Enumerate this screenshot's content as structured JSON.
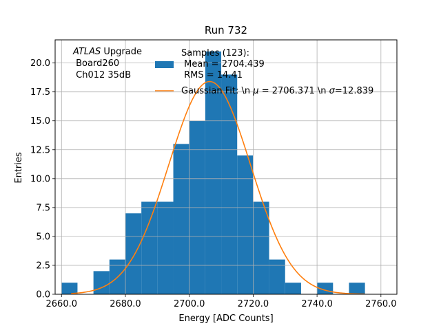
{
  "chart_data": {
    "type": "bar",
    "title": "Run 732",
    "xlabel": "Energy [ADC Counts]",
    "ylabel": "Entries",
    "xlim": [
      2658,
      2765
    ],
    "ylim": [
      0,
      22
    ],
    "xticks": [
      2660,
      2680,
      2700,
      2720,
      2740,
      2760
    ],
    "xtick_labels": [
      "2660.0",
      "2680.0",
      "2700.0",
      "2720.0",
      "2740.0",
      "2760.0"
    ],
    "yticks": [
      0,
      2.5,
      5,
      7.5,
      10,
      12.5,
      15,
      17.5,
      20
    ],
    "ytick_labels": [
      "0.0",
      "2.5",
      "5.0",
      "7.5",
      "10.0",
      "12.5",
      "15.0",
      "17.5",
      "20.0"
    ],
    "grid": true,
    "bin_edges": [
      2660,
      2665,
      2670,
      2675,
      2680,
      2685,
      2690,
      2695,
      2700,
      2705,
      2710,
      2715,
      2720,
      2725,
      2730,
      2735,
      2740,
      2745,
      2750,
      2755
    ],
    "counts": [
      1,
      0,
      2,
      3,
      7,
      8,
      8,
      13,
      15,
      21,
      19,
      12,
      8,
      3,
      1,
      0,
      1,
      0,
      1
    ],
    "bar_color": "#1f77b4",
    "fit": {
      "mu": 2706.371,
      "sigma": 12.839,
      "amplitude": 18.4,
      "x_range": [
        2663,
        2755
      ],
      "color": "#ff7f0e"
    },
    "annotation": {
      "line1_italic": "ATLAS",
      "line1_rest": " Upgrade",
      "line2": " Board260",
      "line3": " Ch012 35dB"
    },
    "legend": {
      "placement": "top-center",
      "hist_lines": [
        "Samples (123):",
        " Mean = 2704.439",
        " RMS = 14.41"
      ],
      "fit_prefix": "Gaussian Fit: \\n ",
      "fit_mu_symbol": "μ",
      "fit_mu_value": " = 2706.371 \\n ",
      "fit_sigma_symbol": "σ",
      "fit_sigma_value": "=12.839"
    }
  }
}
